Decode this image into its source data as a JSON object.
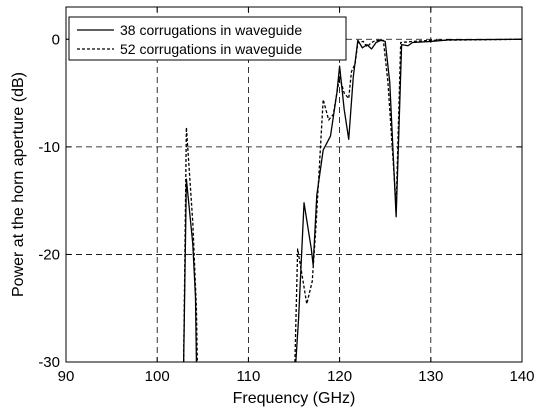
{
  "chart_data": {
    "type": "line",
    "title": "",
    "xlabel": "Frequency (GHz)",
    "ylabel": "Power at the horn aperture (dB)",
    "xlim": [
      90,
      140
    ],
    "ylim": [
      -30,
      3
    ],
    "xticks": [
      90,
      100,
      110,
      120,
      130,
      140
    ],
    "yticks": [
      -30,
      -20,
      -10,
      0
    ],
    "xtick_labels": [
      "90",
      "100",
      "110",
      "120",
      "130",
      "140"
    ],
    "ytick_labels": [
      "-30",
      "-20",
      "-10",
      "0"
    ],
    "grid": true,
    "legend_position": "top-left",
    "series": [
      {
        "name": "38 corrugations in waveguide",
        "style": "solid",
        "color": "#000000",
        "segments": [
          [
            [
              102.9,
              -30
            ],
            [
              103.2,
              -13
            ],
            [
              103.9,
              -19
            ],
            [
              104.2,
              -24
            ],
            [
              104.3,
              -30
            ]
          ],
          [
            [
              115.2,
              -30
            ],
            [
              115.5,
              -26
            ],
            [
              116.1,
              -15.2
            ],
            [
              116.9,
              -19.5
            ],
            [
              117.1,
              -21
            ],
            [
              117.5,
              -14.5
            ],
            [
              118.2,
              -10.3
            ],
            [
              119.0,
              -9
            ],
            [
              119.7,
              -5
            ],
            [
              120.0,
              -2.5
            ],
            [
              120.5,
              -6.5
            ],
            [
              121.0,
              -9.3
            ],
            [
              121.5,
              -3.5
            ],
            [
              122.0,
              -0.1
            ],
            [
              122.5,
              -0.8
            ],
            [
              123.0,
              -0.5
            ],
            [
              123.5,
              -0.9
            ],
            [
              124.0,
              -0.3
            ],
            [
              124.5,
              -0.1
            ],
            [
              125.0,
              -0.2
            ],
            [
              125.5,
              -4
            ],
            [
              126.2,
              -16.5
            ],
            [
              126.8,
              -0.5
            ],
            [
              127.5,
              -0.6
            ],
            [
              128.0,
              -0.3
            ],
            [
              130.0,
              -0.2
            ],
            [
              132.0,
              -0.05
            ],
            [
              140.0,
              0
            ]
          ]
        ]
      },
      {
        "name": "52 corrugations in waveguide",
        "style": "dashed",
        "color": "#000000",
        "segments": [
          [
            [
              102.9,
              -30
            ],
            [
              103.2,
              -8.2
            ],
            [
              103.9,
              -17
            ],
            [
              104.3,
              -25
            ],
            [
              104.4,
              -30
            ]
          ],
          [
            [
              115.1,
              -30
            ],
            [
              115.4,
              -19.5
            ],
            [
              115.9,
              -22
            ],
            [
              116.4,
              -24.6
            ],
            [
              117.0,
              -22.5
            ],
            [
              117.4,
              -17.5
            ],
            [
              118.2,
              -5.6
            ],
            [
              118.8,
              -7.5
            ],
            [
              119.3,
              -7
            ],
            [
              120.0,
              -3.5
            ],
            [
              120.5,
              -5
            ],
            [
              121.0,
              -5.5
            ],
            [
              121.3,
              -3
            ],
            [
              121.7,
              -2.3
            ],
            [
              122.0,
              -0.3
            ],
            [
              122.6,
              -0.2
            ],
            [
              123.0,
              -0.7
            ],
            [
              123.5,
              -0.3
            ],
            [
              124.0,
              -0.1
            ],
            [
              124.8,
              -0.1
            ],
            [
              125.3,
              -4
            ],
            [
              126.2,
              -15.5
            ],
            [
              126.7,
              -0.3
            ],
            [
              128.0,
              -0.2
            ],
            [
              130.0,
              -0.1
            ],
            [
              140.0,
              0
            ]
          ]
        ]
      }
    ]
  }
}
